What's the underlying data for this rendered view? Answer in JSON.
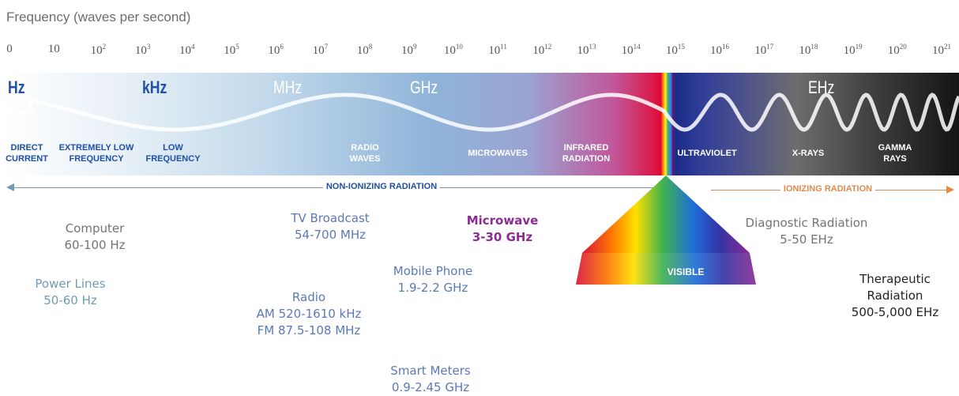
{
  "title": "Frequency (waves per second)",
  "ticks": [
    {
      "base": "0",
      "exp": ""
    },
    {
      "base": "10",
      "exp": ""
    },
    {
      "base": "10",
      "exp": "2"
    },
    {
      "base": "10",
      "exp": "3"
    },
    {
      "base": "10",
      "exp": "4"
    },
    {
      "base": "10",
      "exp": "5"
    },
    {
      "base": "10",
      "exp": "6"
    },
    {
      "base": "10",
      "exp": "7"
    },
    {
      "base": "10",
      "exp": "8"
    },
    {
      "base": "10",
      "exp": "9"
    },
    {
      "base": "10",
      "exp": "10"
    },
    {
      "base": "10",
      "exp": "11"
    },
    {
      "base": "10",
      "exp": "12"
    },
    {
      "base": "10",
      "exp": "13"
    },
    {
      "base": "10",
      "exp": "14"
    },
    {
      "base": "10",
      "exp": "15"
    },
    {
      "base": "10",
      "exp": "16"
    },
    {
      "base": "10",
      "exp": "17"
    },
    {
      "base": "10",
      "exp": "18"
    },
    {
      "base": "10",
      "exp": "19"
    },
    {
      "base": "10",
      "exp": "20"
    },
    {
      "base": "10",
      "exp": "21"
    }
  ],
  "units": {
    "hz": "Hz",
    "khz": "kHz",
    "mhz": "MHz",
    "ghz": "GHz",
    "ehz": "EHz"
  },
  "bands": {
    "direct_current": [
      "DIRECT",
      "CURRENT"
    ],
    "extremely_low": [
      "EXTREMELY LOW",
      "FREQUENCY"
    ],
    "low": [
      "LOW",
      "FREQUENCY"
    ],
    "radio": [
      "RADIO",
      "WAVES"
    ],
    "microwaves": [
      "MICROWAVES"
    ],
    "infrared": [
      "INFRARED",
      "RADIATION"
    ],
    "ultraviolet": [
      "ULTRAVIOLET"
    ],
    "xrays": [
      "X-RAYS"
    ],
    "gamma": [
      "GAMMA",
      "RAYS"
    ]
  },
  "radiation": {
    "non_ionizing": "NON-IONIZING RADIATION",
    "ionizing": "IONIZING RADIATION"
  },
  "visible_label": "VISIBLE",
  "examples": {
    "computer": [
      "Computer",
      "60-100 Hz"
    ],
    "power_lines": [
      "Power Lines",
      "50-60 Hz"
    ],
    "tv": [
      "TV Broadcast",
      "54-700 MHz"
    ],
    "radio": [
      "Radio",
      "AM 520-1610 kHz",
      "FM 87.5-108 MHz"
    ],
    "microwave": [
      "Microwave",
      "3-30 GHz"
    ],
    "mobile": [
      "Mobile Phone",
      "1.9-2.2 GHz"
    ],
    "smart_meters": [
      "Smart Meters",
      "0.9-2.45 GHz"
    ],
    "diagnostic": [
      "Diagnostic Radiation",
      "5-50 EHz"
    ],
    "therapeutic": [
      "Therapeutic",
      "Radiation",
      "500-5,000 EHz"
    ]
  },
  "colors": {
    "accent_blue": "#1f4fa8",
    "teal": "#6d9db3",
    "orange": "#e08a4e",
    "purple": "#8a2c92"
  }
}
